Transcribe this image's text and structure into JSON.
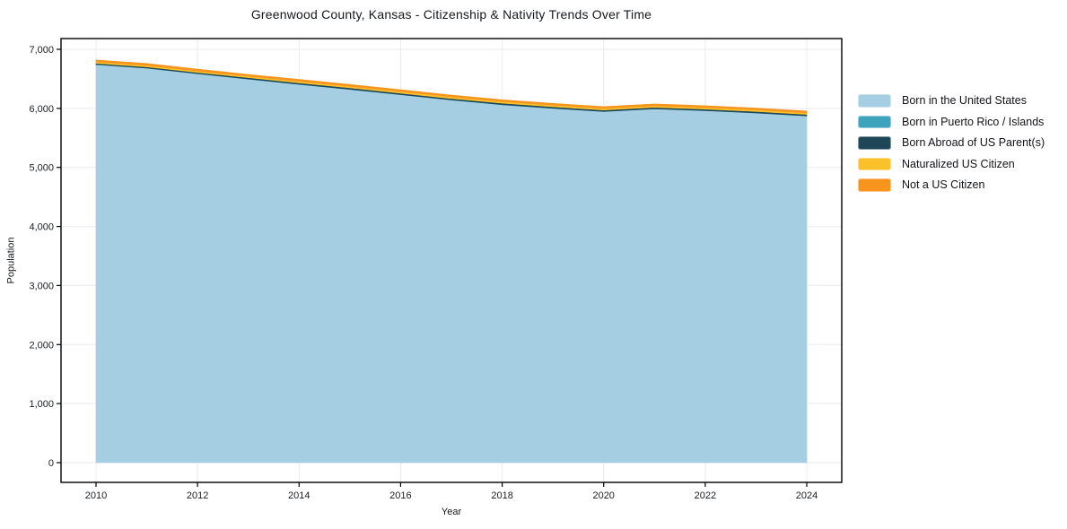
{
  "chart": {
    "title": "Greenwood County, Kansas - Citizenship & Nativity Trends Over Time",
    "xlabel": "Year",
    "ylabel": "Population"
  },
  "chart_data": {
    "type": "area",
    "stacked": true,
    "title": "Greenwood County, Kansas - Citizenship & Nativity Trends Over Time",
    "xlabel": "Year",
    "ylabel": "Population",
    "grid": true,
    "legend_position": "right",
    "x": [
      2010,
      2011,
      2012,
      2013,
      2014,
      2015,
      2016,
      2017,
      2018,
      2019,
      2020,
      2021,
      2022,
      2023,
      2024
    ],
    "xticks": [
      2010,
      2012,
      2014,
      2016,
      2018,
      2020,
      2022,
      2024
    ],
    "yticks": [
      0,
      1000,
      2000,
      3000,
      4000,
      5000,
      6000,
      7000
    ],
    "ylim": [
      0,
      7000
    ],
    "series": [
      {
        "name": "Born in the United States",
        "color": "#A5CEE3",
        "values": [
          6740,
          6680,
          6585,
          6495,
          6405,
          6320,
          6230,
          6140,
          6060,
          6000,
          5945,
          5990,
          5960,
          5920,
          5870
        ]
      },
      {
        "name": "Born in Puerto Rico / Islands",
        "color": "#3FA3BE",
        "values": [
          3,
          3,
          3,
          3,
          3,
          3,
          3,
          3,
          3,
          3,
          3,
          3,
          3,
          3,
          3
        ]
      },
      {
        "name": "Born Abroad of US Parent(s)",
        "color": "#1F4656",
        "values": [
          20,
          20,
          20,
          22,
          22,
          24,
          24,
          24,
          24,
          24,
          24,
          24,
          24,
          24,
          24
        ]
      },
      {
        "name": "Naturalized US Citizen",
        "color": "#FBC12B",
        "values": [
          25,
          25,
          25,
          25,
          28,
          28,
          28,
          28,
          28,
          28,
          28,
          28,
          28,
          28,
          28
        ]
      },
      {
        "name": "Not a US Citizen",
        "color": "#F7941E",
        "values": [
          32,
          32,
          32,
          30,
          32,
          30,
          30,
          30,
          30,
          30,
          30,
          30,
          30,
          30,
          30
        ]
      }
    ],
    "totals": [
      6820,
      6760,
      6665,
      6575,
      6490,
      6405,
      6315,
      6225,
      6145,
      6085,
      6030,
      6075,
      6045,
      6005,
      5955
    ]
  },
  "style": {
    "gridline_color": "#ebebee",
    "spine_color": "#000000",
    "tick_label_color": "#1a1d21",
    "background": "#ffffff"
  }
}
